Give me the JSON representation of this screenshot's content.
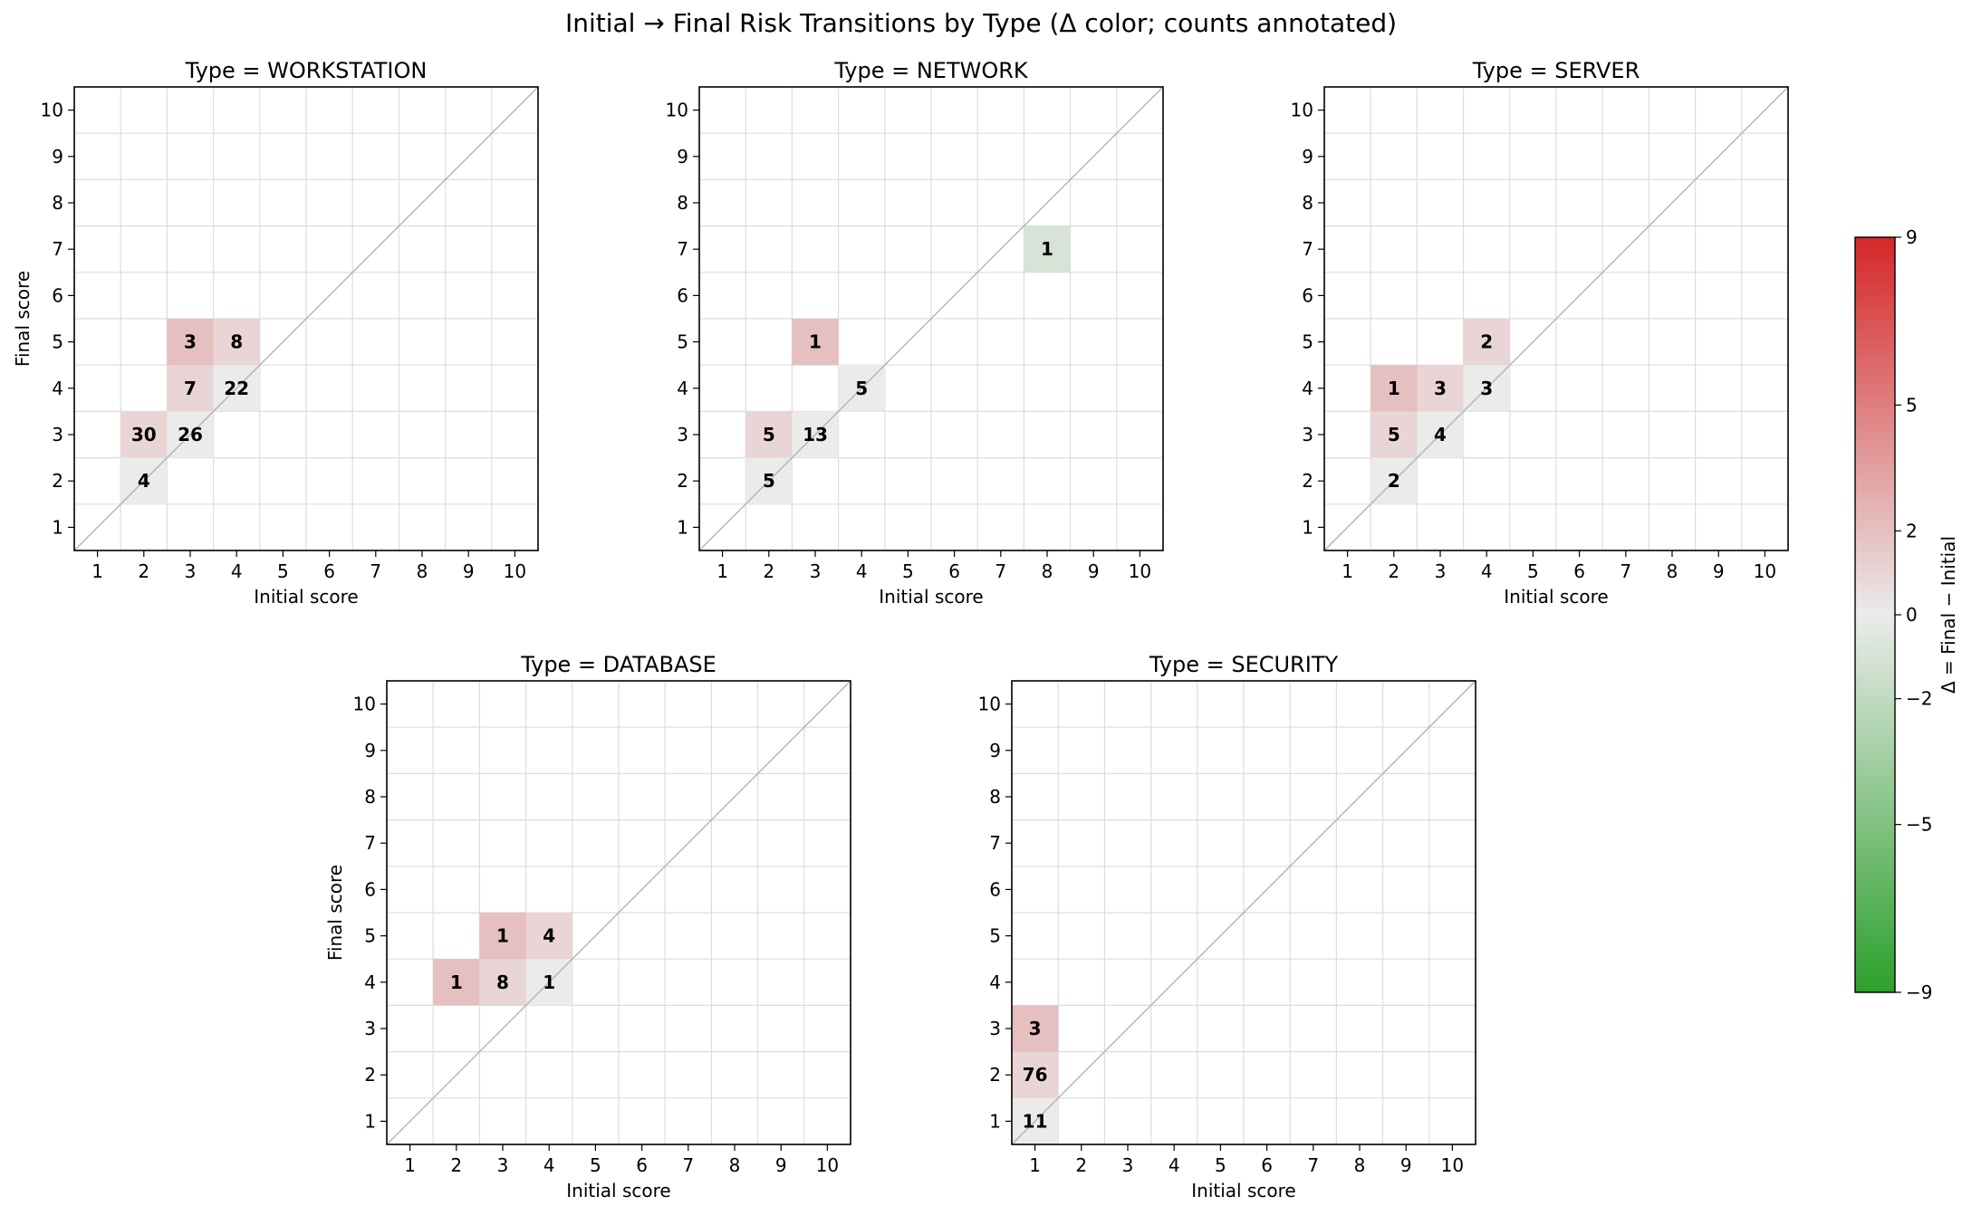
{
  "title": "Initial → Final Risk Transitions by Type (Δ color; counts annotated)",
  "colorbar": {
    "label": "Δ = Final − Initial",
    "range": [
      -9,
      9
    ],
    "ticks": [
      -9,
      -5,
      -2,
      0,
      2,
      5,
      9
    ],
    "tick_labels": [
      "−9",
      "−5",
      "−2",
      "0",
      "2",
      "5",
      "9"
    ],
    "colors": {
      "low": "#2ca02c",
      "mid": "#ebebeb",
      "high": "#d62728"
    }
  },
  "chart_data": [
    {
      "type": "heatmap",
      "title": "Type = WORKSTATION",
      "xlabel": "Initial score",
      "ylabel": "Final score",
      "x_ticks": [
        1,
        2,
        3,
        4,
        5,
        6,
        7,
        8,
        9,
        10
      ],
      "y_ticks": [
        1,
        2,
        3,
        4,
        5,
        6,
        7,
        8,
        9,
        10
      ],
      "cells": [
        {
          "initial": 2,
          "final": 2,
          "count": 4
        },
        {
          "initial": 2,
          "final": 3,
          "count": 30
        },
        {
          "initial": 3,
          "final": 3,
          "count": 26
        },
        {
          "initial": 3,
          "final": 4,
          "count": 7
        },
        {
          "initial": 3,
          "final": 5,
          "count": 3
        },
        {
          "initial": 4,
          "final": 4,
          "count": 22
        },
        {
          "initial": 4,
          "final": 5,
          "count": 8
        }
      ]
    },
    {
      "type": "heatmap",
      "title": "Type = NETWORK",
      "xlabel": "Initial score",
      "ylabel": "",
      "x_ticks": [
        1,
        2,
        3,
        4,
        5,
        6,
        7,
        8,
        9,
        10
      ],
      "y_ticks": [
        1,
        2,
        3,
        4,
        5,
        6,
        7,
        8,
        9,
        10
      ],
      "cells": [
        {
          "initial": 2,
          "final": 2,
          "count": 5
        },
        {
          "initial": 2,
          "final": 3,
          "count": 5
        },
        {
          "initial": 3,
          "final": 3,
          "count": 13
        },
        {
          "initial": 3,
          "final": 5,
          "count": 1
        },
        {
          "initial": 4,
          "final": 4,
          "count": 5
        },
        {
          "initial": 8,
          "final": 7,
          "count": 1
        }
      ]
    },
    {
      "type": "heatmap",
      "title": "Type = SERVER",
      "xlabel": "Initial score",
      "ylabel": "",
      "x_ticks": [
        1,
        2,
        3,
        4,
        5,
        6,
        7,
        8,
        9,
        10
      ],
      "y_ticks": [
        1,
        2,
        3,
        4,
        5,
        6,
        7,
        8,
        9,
        10
      ],
      "cells": [
        {
          "initial": 2,
          "final": 2,
          "count": 2
        },
        {
          "initial": 2,
          "final": 3,
          "count": 5
        },
        {
          "initial": 2,
          "final": 4,
          "count": 1
        },
        {
          "initial": 3,
          "final": 3,
          "count": 4
        },
        {
          "initial": 3,
          "final": 4,
          "count": 3
        },
        {
          "initial": 4,
          "final": 4,
          "count": 3
        },
        {
          "initial": 4,
          "final": 5,
          "count": 2
        }
      ]
    },
    {
      "type": "heatmap",
      "title": "Type = DATABASE",
      "xlabel": "Initial score",
      "ylabel": "Final score",
      "x_ticks": [
        1,
        2,
        3,
        4,
        5,
        6,
        7,
        8,
        9,
        10
      ],
      "y_ticks": [
        1,
        2,
        3,
        4,
        5,
        6,
        7,
        8,
        9,
        10
      ],
      "cells": [
        {
          "initial": 2,
          "final": 4,
          "count": 1
        },
        {
          "initial": 3,
          "final": 4,
          "count": 8
        },
        {
          "initial": 3,
          "final": 5,
          "count": 1
        },
        {
          "initial": 4,
          "final": 4,
          "count": 1
        },
        {
          "initial": 4,
          "final": 5,
          "count": 4
        }
      ]
    },
    {
      "type": "heatmap",
      "title": "Type = SECURITY",
      "xlabel": "Initial score",
      "ylabel": "",
      "x_ticks": [
        1,
        2,
        3,
        4,
        5,
        6,
        7,
        8,
        9,
        10
      ],
      "y_ticks": [
        1,
        2,
        3,
        4,
        5,
        6,
        7,
        8,
        9,
        10
      ],
      "cells": [
        {
          "initial": 1,
          "final": 1,
          "count": 11
        },
        {
          "initial": 1,
          "final": 2,
          "count": 76
        },
        {
          "initial": 1,
          "final": 3,
          "count": 3
        }
      ]
    }
  ]
}
